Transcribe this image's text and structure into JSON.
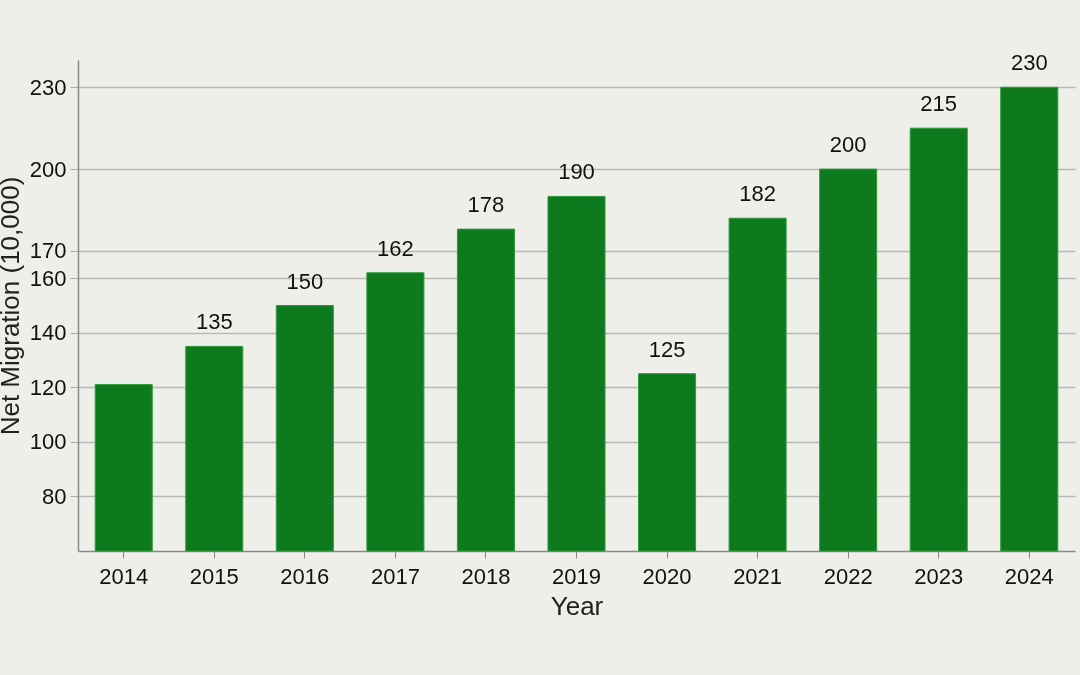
{
  "chart_data": {
    "type": "bar",
    "xlabel": "Year",
    "ylabel": "Net Migration (10,000)",
    "categories": [
      "2014",
      "2015",
      "2016",
      "2017",
      "2018",
      "2019",
      "2020",
      "2021",
      "2022",
      "2023",
      "2024"
    ],
    "values": [
      121,
      135,
      150,
      162,
      178,
      190,
      125,
      182,
      200,
      215,
      230
    ],
    "value_labels": [
      null,
      "135",
      "150",
      "162",
      "178",
      "190",
      "125",
      "182",
      "200",
      "215",
      "230"
    ],
    "color": "#0e7a1e",
    "ylim": [
      60,
      240
    ],
    "yticks": [
      80,
      100,
      120,
      140,
      160,
      170,
      200,
      230
    ],
    "grid": "y"
  }
}
